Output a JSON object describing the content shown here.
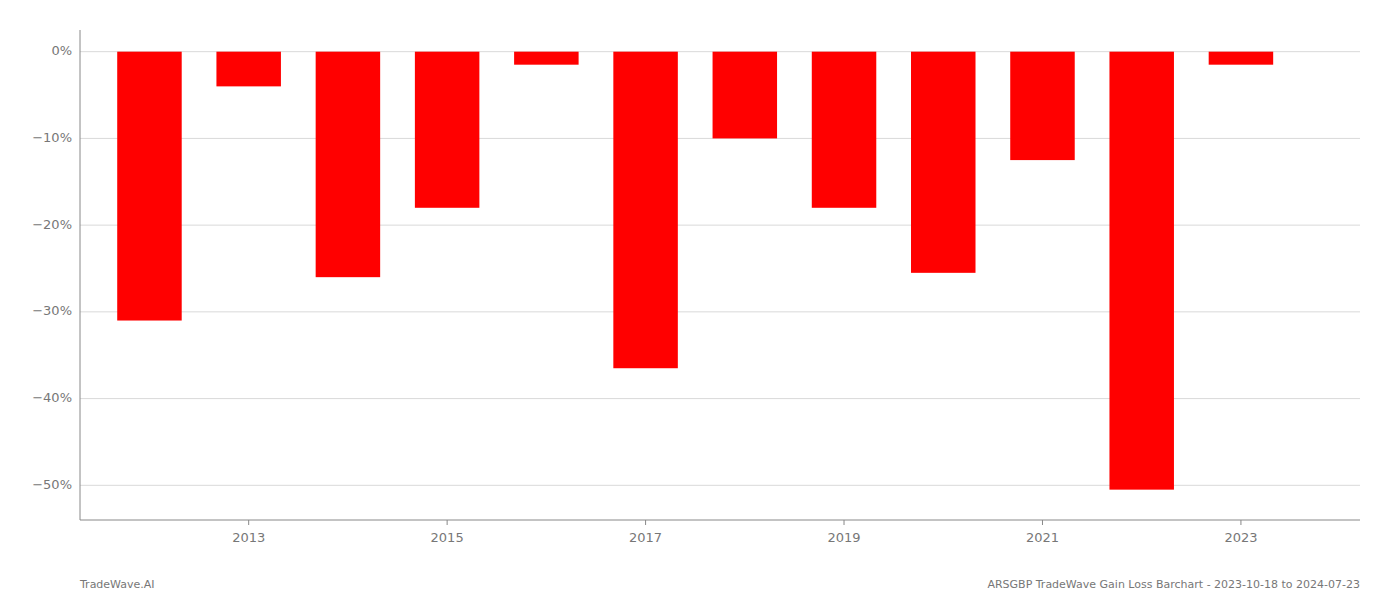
{
  "chart_data": {
    "type": "bar",
    "x": [
      2012,
      2013,
      2014,
      2015,
      2016,
      2017,
      2018,
      2019,
      2020,
      2021,
      2022,
      2023
    ],
    "values": [
      -31.0,
      -4.0,
      -26.0,
      -18.0,
      -1.5,
      -36.5,
      -10.0,
      -18.0,
      -25.5,
      -12.5,
      -50.5,
      -1.5
    ],
    "color": "#ff0000",
    "xlim": [
      2011.3,
      2024.2
    ],
    "xticks": [
      2013,
      2015,
      2017,
      2019,
      2021,
      2023
    ],
    "ylim": [
      -54,
      2.5
    ],
    "yticks": [
      {
        "value": 0,
        "label": "0%"
      },
      {
        "value": -10,
        "label": "−10%"
      },
      {
        "value": -20,
        "label": "−20%"
      },
      {
        "value": -30,
        "label": "−30%"
      },
      {
        "value": -40,
        "label": "−40%"
      },
      {
        "value": -50,
        "label": "−50%"
      }
    ],
    "grid": true,
    "annotations": [
      "TradeWave.AI",
      "ARSGBP TradeWave Gain Loss Barchart - 2023-10-18 to 2024-07-23"
    ]
  }
}
